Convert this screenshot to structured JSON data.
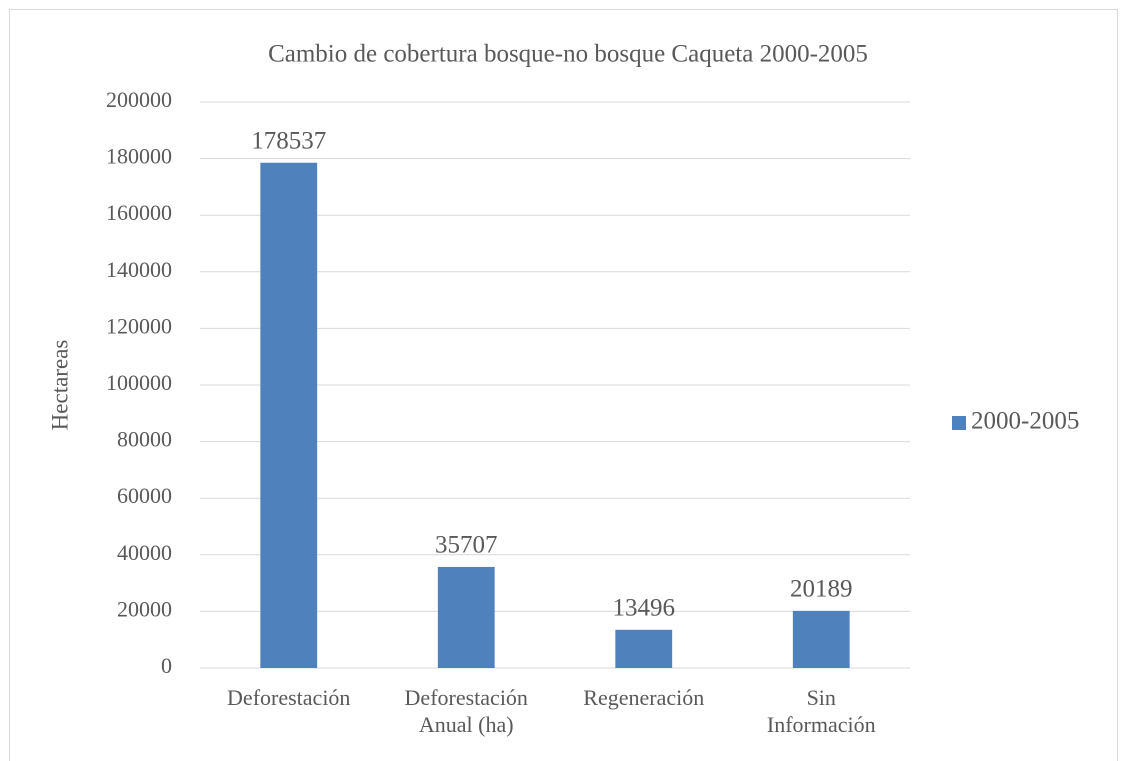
{
  "chart_data": {
    "type": "bar",
    "title": "Cambio de cobertura bosque-no bosque Caqueta 2000-2005",
    "y_label": "Hectareas",
    "categories": [
      "Deforestación",
      "Deforestación\nAnual (ha)",
      "Regeneración",
      "Sin\nInformación"
    ],
    "series": [
      {
        "name": "2000-2005",
        "color": "#4f81bd",
        "values": [
          178537,
          35707,
          13496,
          20189
        ]
      }
    ],
    "ylim": [
      0,
      200000
    ],
    "yticks": [
      0,
      20000,
      40000,
      60000,
      80000,
      100000,
      120000,
      140000,
      160000,
      180000,
      200000
    ],
    "grid": true,
    "legend": "right",
    "data_labels": true
  }
}
